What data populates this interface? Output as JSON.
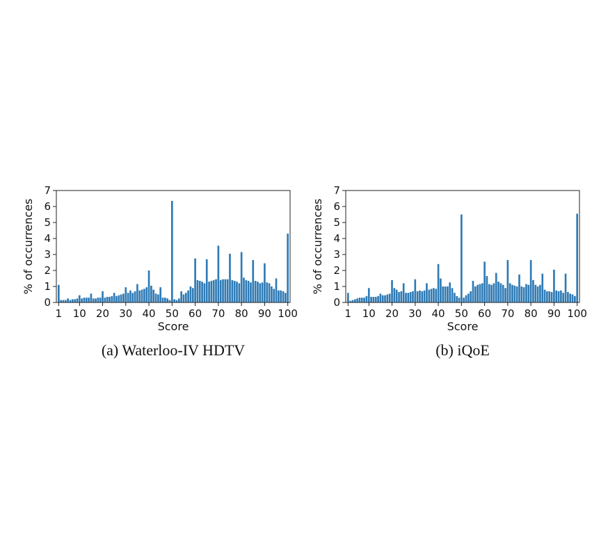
{
  "chart_data": [
    {
      "type": "bar",
      "caption": "(a) Waterloo-IV HDTV",
      "xlabel": "Score",
      "ylabel": "% of occurrences",
      "xticks": [
        "1",
        "10",
        "20",
        "30",
        "40",
        "50",
        "60",
        "70",
        "80",
        "90",
        "100"
      ],
      "xtick_values": [
        1,
        10,
        20,
        30,
        40,
        50,
        60,
        70,
        80,
        90,
        100
      ],
      "yticks": [
        "0",
        "1",
        "2",
        "3",
        "4",
        "5",
        "6",
        "7"
      ],
      "ylim": [
        0,
        7
      ],
      "xlim": [
        0,
        101
      ],
      "color": "#2e7ab5",
      "x": [
        1,
        2,
        3,
        4,
        5,
        6,
        7,
        8,
        9,
        10,
        11,
        12,
        13,
        14,
        15,
        16,
        17,
        18,
        19,
        20,
        21,
        22,
        23,
        24,
        25,
        26,
        27,
        28,
        29,
        30,
        31,
        32,
        33,
        34,
        35,
        36,
        37,
        38,
        39,
        40,
        41,
        42,
        43,
        44,
        45,
        46,
        47,
        48,
        49,
        50,
        51,
        52,
        53,
        54,
        55,
        56,
        57,
        58,
        59,
        60,
        61,
        62,
        63,
        64,
        65,
        66,
        67,
        68,
        69,
        70,
        71,
        72,
        73,
        74,
        75,
        76,
        77,
        78,
        79,
        80,
        81,
        82,
        83,
        84,
        85,
        86,
        87,
        88,
        89,
        90,
        91,
        92,
        93,
        94,
        95,
        96,
        97,
        98,
        99,
        100
      ],
      "values": [
        1.1,
        0.15,
        0.15,
        0.15,
        0.25,
        0.15,
        0.2,
        0.2,
        0.25,
        0.45,
        0.25,
        0.3,
        0.3,
        0.3,
        0.55,
        0.25,
        0.25,
        0.3,
        0.3,
        0.7,
        0.3,
        0.35,
        0.35,
        0.4,
        0.6,
        0.4,
        0.45,
        0.5,
        0.55,
        0.95,
        0.6,
        0.75,
        0.6,
        0.7,
        1.15,
        0.75,
        0.8,
        0.85,
        0.95,
        2.0,
        1.05,
        0.8,
        0.55,
        0.5,
        0.95,
        0.3,
        0.3,
        0.25,
        0.15,
        6.35,
        0.2,
        0.15,
        0.25,
        0.7,
        0.5,
        0.6,
        0.75,
        1.0,
        0.9,
        2.75,
        1.4,
        1.35,
        1.3,
        1.2,
        2.7,
        1.3,
        1.35,
        1.4,
        1.45,
        3.55,
        1.4,
        1.45,
        1.45,
        1.45,
        3.05,
        1.4,
        1.35,
        1.3,
        1.2,
        3.15,
        1.55,
        1.4,
        1.35,
        1.25,
        2.65,
        1.35,
        1.3,
        1.2,
        1.25,
        2.45,
        1.25,
        1.2,
        1.0,
        0.85,
        1.5,
        0.75,
        0.75,
        0.7,
        0.6,
        4.3
      ]
    },
    {
      "type": "bar",
      "caption": "(b) iQoE",
      "xlabel": "Score",
      "ylabel": "% of occurrences",
      "xticks": [
        "1",
        "10",
        "20",
        "30",
        "40",
        "50",
        "60",
        "70",
        "80",
        "90",
        "100"
      ],
      "xtick_values": [
        1,
        10,
        20,
        30,
        40,
        50,
        60,
        70,
        80,
        90,
        100
      ],
      "yticks": [
        "0",
        "1",
        "2",
        "3",
        "4",
        "5",
        "6",
        "7"
      ],
      "ylim": [
        0,
        7
      ],
      "xlim": [
        0,
        101
      ],
      "color": "#2e7ab5",
      "x": [
        1,
        2,
        3,
        4,
        5,
        6,
        7,
        8,
        9,
        10,
        11,
        12,
        13,
        14,
        15,
        16,
        17,
        18,
        19,
        20,
        21,
        22,
        23,
        24,
        25,
        26,
        27,
        28,
        29,
        30,
        31,
        32,
        33,
        34,
        35,
        36,
        37,
        38,
        39,
        40,
        41,
        42,
        43,
        44,
        45,
        46,
        47,
        48,
        49,
        50,
        51,
        52,
        53,
        54,
        55,
        56,
        57,
        58,
        59,
        60,
        61,
        62,
        63,
        64,
        65,
        66,
        67,
        68,
        69,
        70,
        71,
        72,
        73,
        74,
        75,
        76,
        77,
        78,
        79,
        80,
        81,
        82,
        83,
        84,
        85,
        86,
        87,
        88,
        89,
        90,
        91,
        92,
        93,
        94,
        95,
        96,
        97,
        98,
        99,
        100
      ],
      "values": [
        0.6,
        0.1,
        0.15,
        0.2,
        0.25,
        0.3,
        0.3,
        0.3,
        0.4,
        0.9,
        0.35,
        0.35,
        0.35,
        0.4,
        0.55,
        0.45,
        0.45,
        0.5,
        0.55,
        1.4,
        0.9,
        0.8,
        0.65,
        0.7,
        1.2,
        0.6,
        0.6,
        0.65,
        0.7,
        1.45,
        0.7,
        0.75,
        0.7,
        0.75,
        1.2,
        0.8,
        0.85,
        0.9,
        0.85,
        2.4,
        1.5,
        1.0,
        1.0,
        1.0,
        1.25,
        0.9,
        0.6,
        0.4,
        0.3,
        5.5,
        0.3,
        0.45,
        0.55,
        0.7,
        1.35,
        1.0,
        1.1,
        1.15,
        1.2,
        2.55,
        1.65,
        1.15,
        1.1,
        1.2,
        1.85,
        1.3,
        1.2,
        1.1,
        0.9,
        2.65,
        1.2,
        1.1,
        1.05,
        1.0,
        1.75,
        1.0,
        0.95,
        1.15,
        1.1,
        2.65,
        1.4,
        1.1,
        1.0,
        1.1,
        1.8,
        0.8,
        0.7,
        0.7,
        0.65,
        2.05,
        0.75,
        0.7,
        0.75,
        0.6,
        1.8,
        0.65,
        0.55,
        0.5,
        0.4,
        5.55
      ]
    }
  ]
}
